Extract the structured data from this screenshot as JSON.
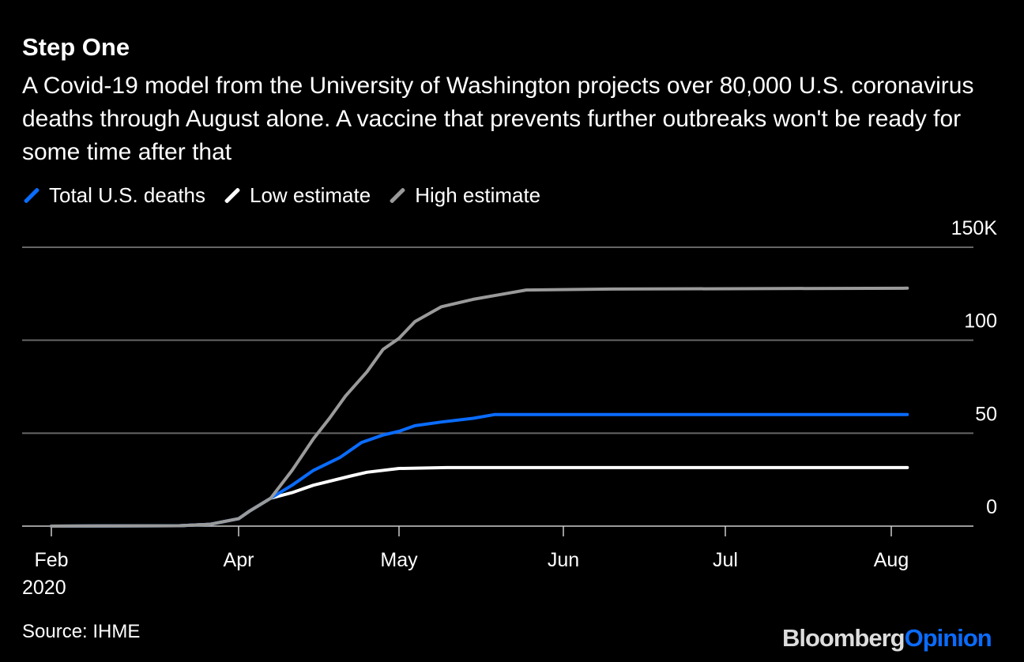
{
  "chart_data": {
    "type": "line",
    "title": "Step One",
    "subtitle": "A Covid-19 model from the University of Washington projects over 80,000 U.S. coronavirus deaths through August alone. A vaccine that prevents further outbreaks won't be ready for some time after that",
    "x_ticks": [
      {
        "date": "2020-02-01",
        "label": "Feb",
        "sublabel": "2020"
      },
      {
        "date": "2020-04-01",
        "label": "Apr"
      },
      {
        "date": "2020-05-01",
        "label": "May"
      },
      {
        "date": "2020-06-01",
        "label": "Jun"
      },
      {
        "date": "2020-07-01",
        "label": "Jul"
      },
      {
        "date": "2020-08-01",
        "label": "Aug"
      }
    ],
    "y_ticks": [
      {
        "value": 0,
        "label": "0"
      },
      {
        "value": 50,
        "label": "50"
      },
      {
        "value": 100,
        "label": "100"
      },
      {
        "value": 150,
        "label": "150K"
      }
    ],
    "ylim": [
      0,
      150
    ],
    "grid": true,
    "legend_position": "top-left",
    "series": [
      {
        "name": "Total U.S. deaths",
        "color": "#0a6cff",
        "points": [
          [
            "2020-02-01",
            0
          ],
          [
            "2020-03-13",
            0.2
          ],
          [
            "2020-03-23",
            1
          ],
          [
            "2020-04-01",
            4
          ],
          [
            "2020-04-03",
            8
          ],
          [
            "2020-04-07",
            15
          ],
          [
            "2020-04-11",
            22
          ],
          [
            "2020-04-15",
            30
          ],
          [
            "2020-04-20",
            37
          ],
          [
            "2020-04-24",
            45
          ],
          [
            "2020-04-28",
            49
          ],
          [
            "2020-05-01",
            51
          ],
          [
            "2020-05-04",
            54
          ],
          [
            "2020-05-09",
            56
          ],
          [
            "2020-05-15",
            58
          ],
          [
            "2020-05-19",
            60
          ],
          [
            "2020-08-04",
            60
          ]
        ]
      },
      {
        "name": "Low estimate",
        "color": "#ffffff",
        "points": [
          [
            "2020-02-01",
            0
          ],
          [
            "2020-03-13",
            0.2
          ],
          [
            "2020-03-23",
            1
          ],
          [
            "2020-04-01",
            4
          ],
          [
            "2020-04-03",
            8
          ],
          [
            "2020-04-07",
            15
          ],
          [
            "2020-04-11",
            18
          ],
          [
            "2020-04-15",
            22
          ],
          [
            "2020-04-22",
            27
          ],
          [
            "2020-04-25",
            29
          ],
          [
            "2020-05-01",
            31
          ],
          [
            "2020-05-10",
            31.5
          ],
          [
            "2020-08-04",
            31.5
          ]
        ]
      },
      {
        "name": "High estimate",
        "color": "#9a9a9a",
        "points": [
          [
            "2020-02-01",
            0
          ],
          [
            "2020-03-13",
            0.2
          ],
          [
            "2020-03-23",
            1
          ],
          [
            "2020-04-01",
            4
          ],
          [
            "2020-04-03",
            8
          ],
          [
            "2020-04-07",
            15
          ],
          [
            "2020-04-11",
            30
          ],
          [
            "2020-04-15",
            47
          ],
          [
            "2020-04-18",
            58
          ],
          [
            "2020-04-21",
            70
          ],
          [
            "2020-04-25",
            83
          ],
          [
            "2020-04-28",
            95
          ],
          [
            "2020-05-01",
            101
          ],
          [
            "2020-05-04",
            110
          ],
          [
            "2020-05-09",
            118
          ],
          [
            "2020-05-15",
            122
          ],
          [
            "2020-05-21",
            125
          ],
          [
            "2020-05-25",
            127
          ],
          [
            "2020-06-10",
            127.5
          ],
          [
            "2020-08-04",
            128
          ]
        ]
      }
    ],
    "source": "Source: IHME"
  },
  "logo": {
    "part1": "Bloomberg",
    "part2": "Opinion",
    "color1": "#dddddd",
    "color2": "#0a6cff"
  }
}
